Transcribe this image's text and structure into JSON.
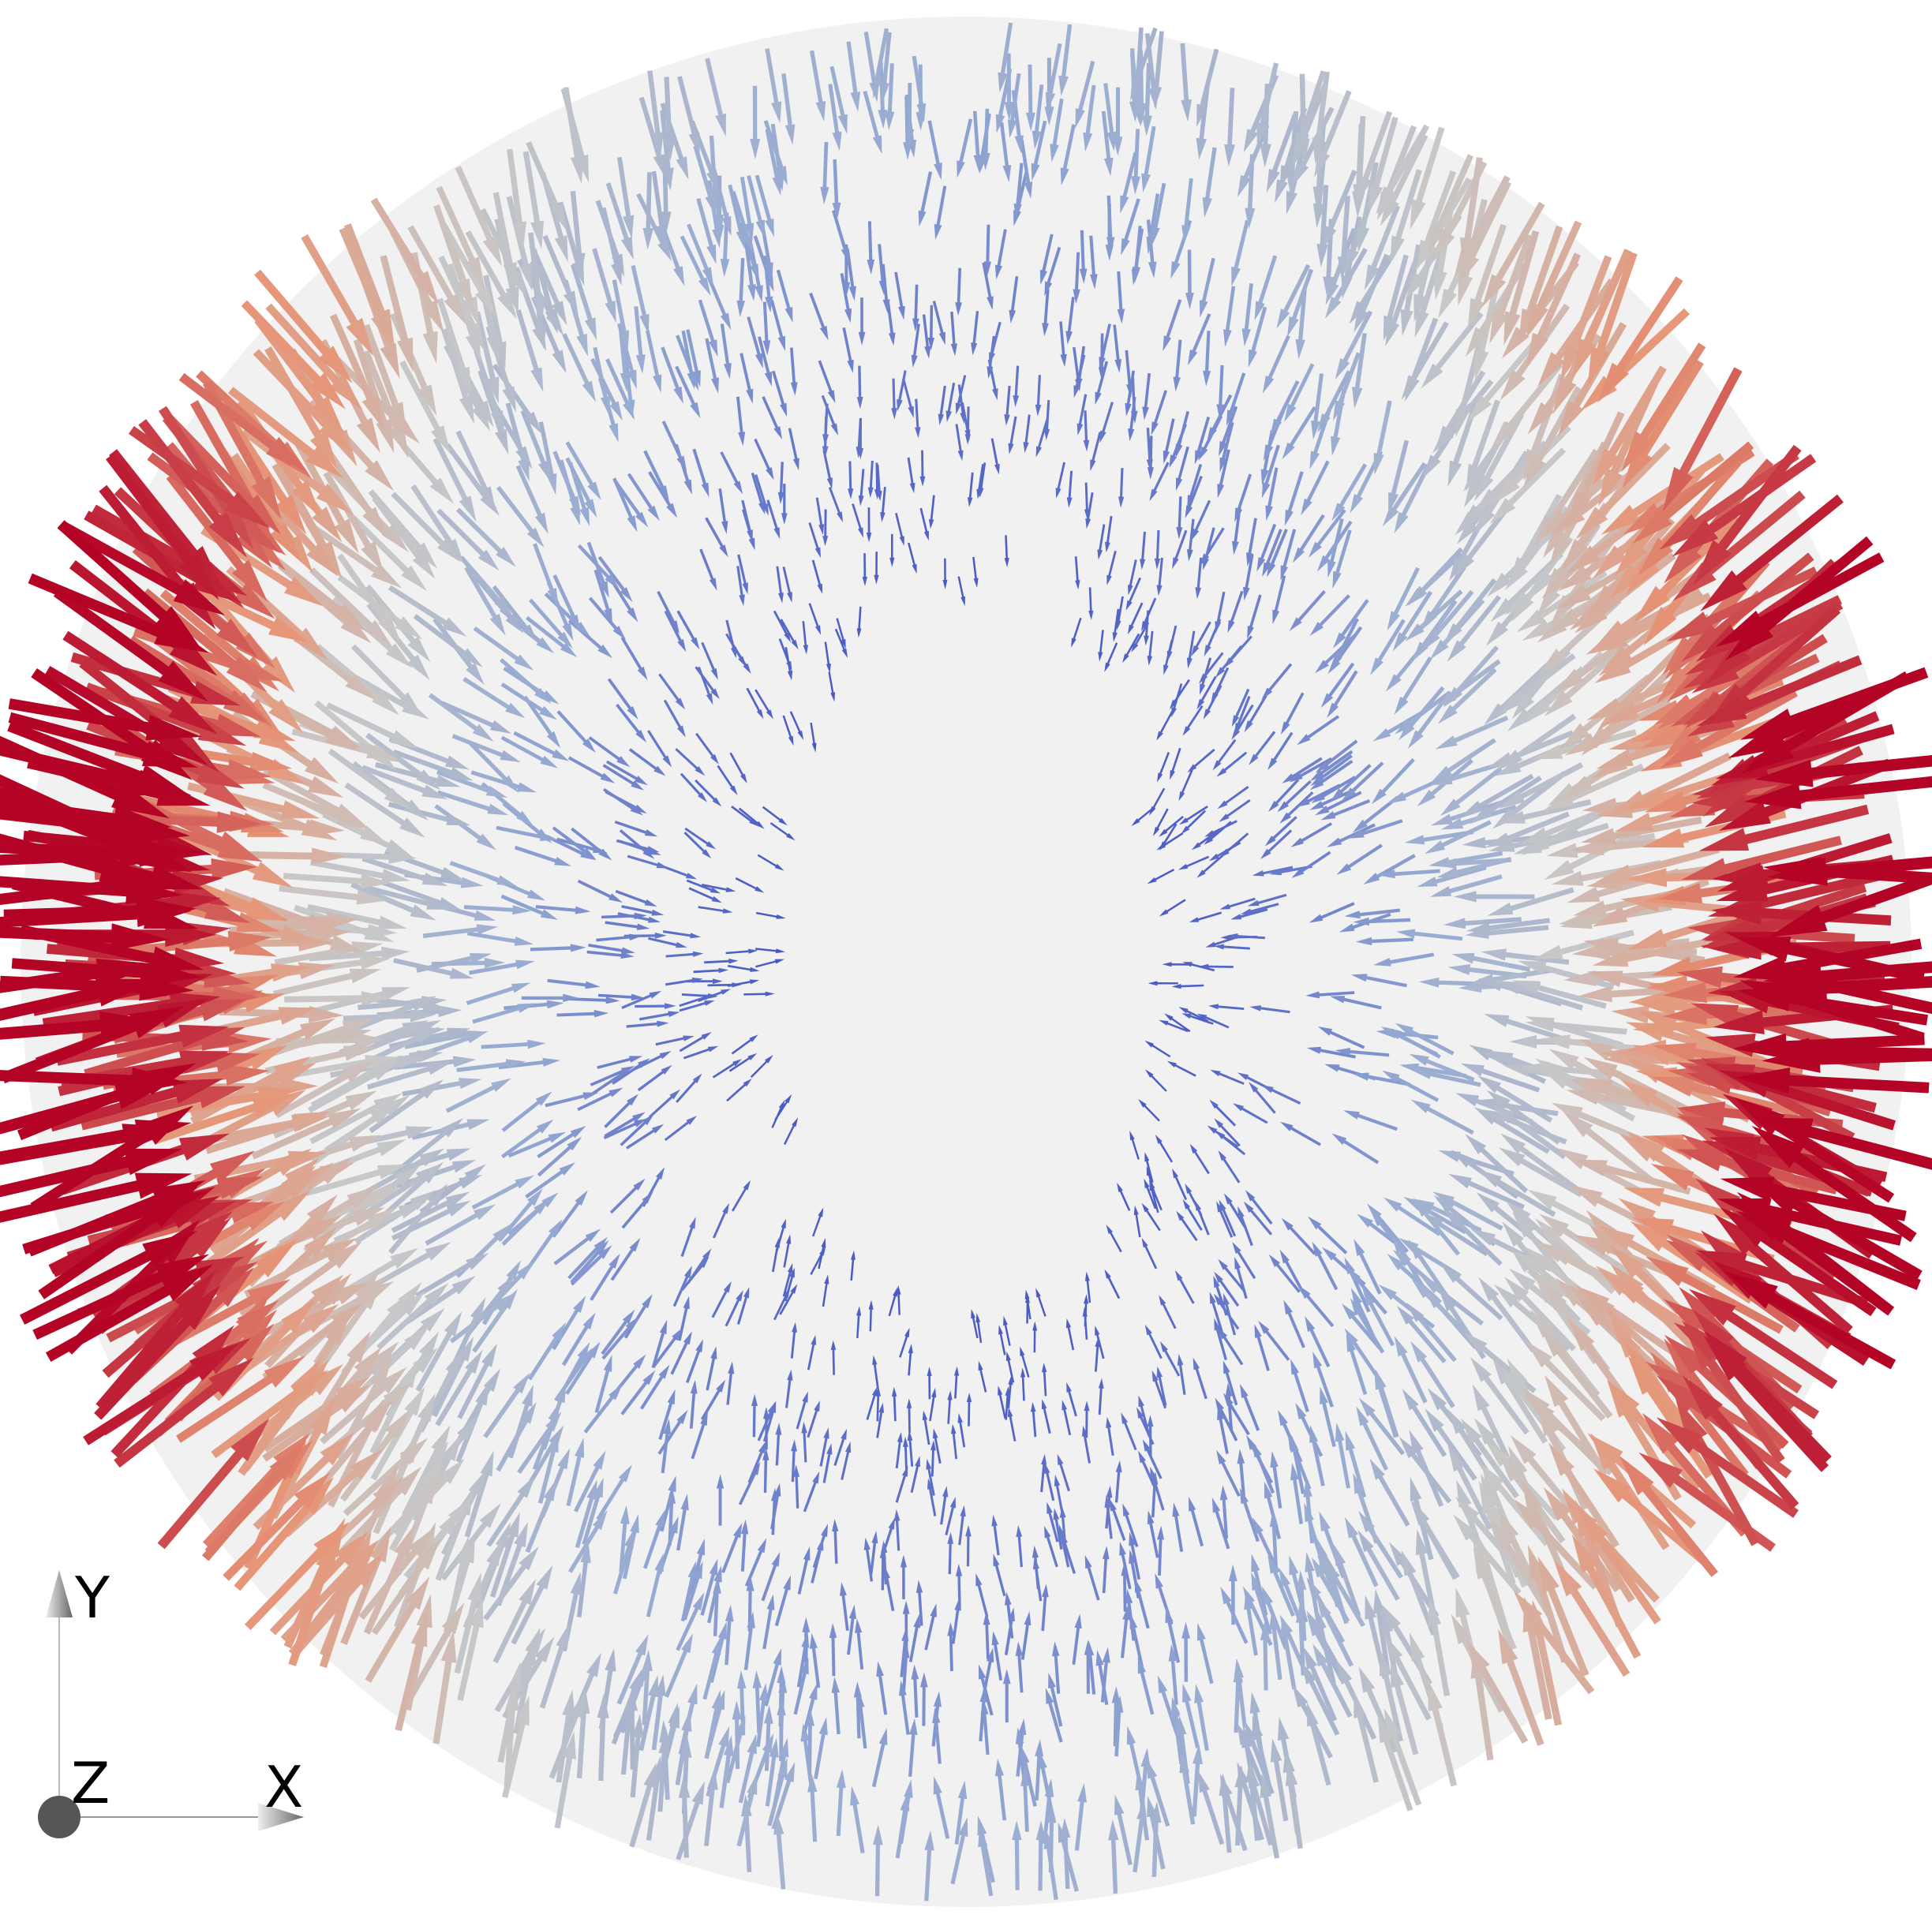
{
  "axes_triad": {
    "y_label": "Y",
    "z_label": "Z",
    "x_label": "X"
  }
}
